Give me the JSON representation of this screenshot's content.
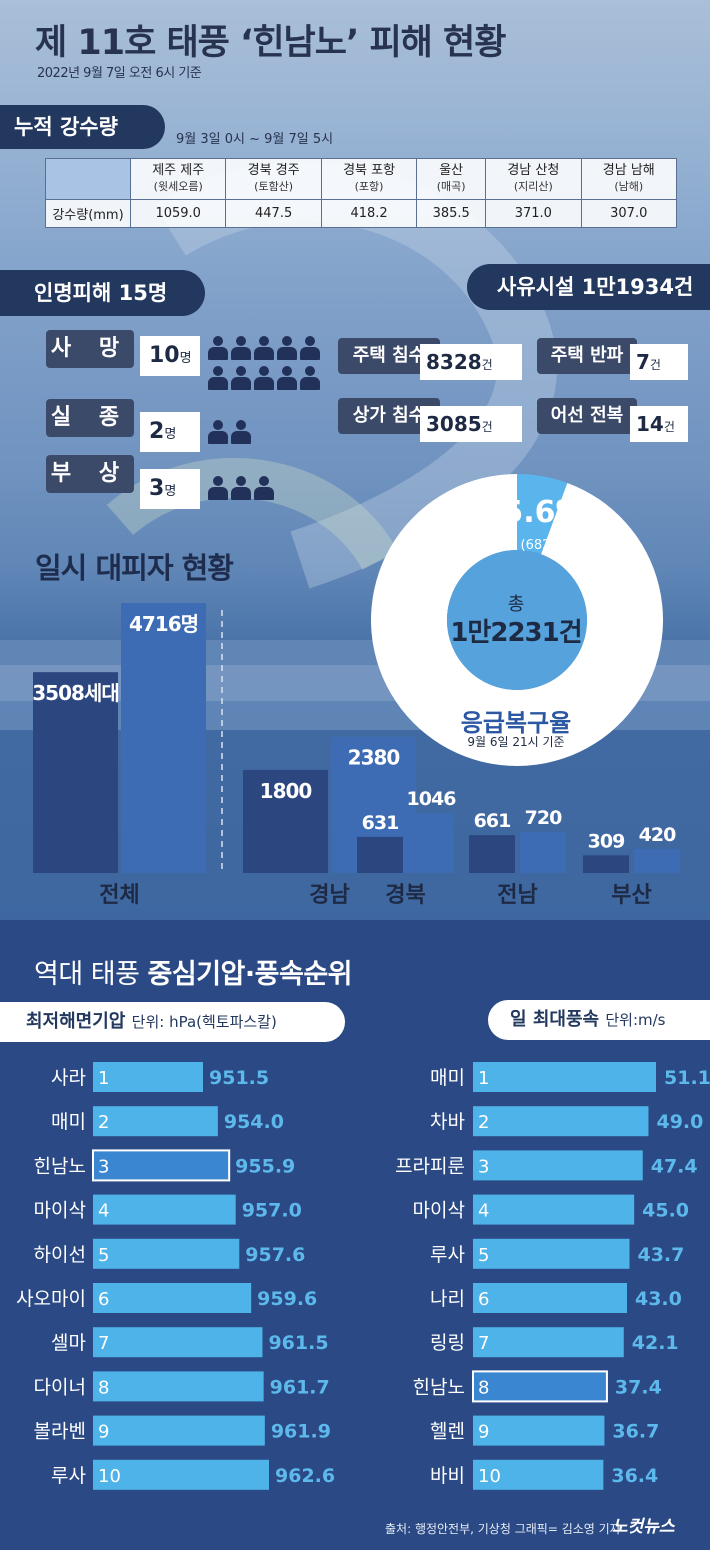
{
  "title": "제 11호 태풍 ‘힌남노’ 피해 현황",
  "subtitle": "2022년 9월 7일 오전 6시 기준",
  "rainfall": {
    "header": "누적 강수량",
    "period": "9월 3일 0시 ~ 9월 7일 5시",
    "row_label": "강수량(mm)",
    "columns": [
      {
        "name": "제주 제주",
        "sub": "(윗세오름)",
        "value": "1059.0"
      },
      {
        "name": "경북 경주",
        "sub": "(토함산)",
        "value": "447.5"
      },
      {
        "name": "경북 포항",
        "sub": "(포항)",
        "value": "418.2"
      },
      {
        "name": "울산",
        "sub": "(매곡)",
        "value": "385.5"
      },
      {
        "name": "경남 산청",
        "sub": "(지리산)",
        "value": "371.0"
      },
      {
        "name": "경남 남해",
        "sub": "(남해)",
        "value": "307.0"
      }
    ]
  },
  "casualties": {
    "header": "인명피해 15명",
    "items": [
      {
        "label": "사 망",
        "value": "10",
        "unit": "명",
        "count": 10
      },
      {
        "label": "실 종",
        "value": "2",
        "unit": "명",
        "count": 2
      },
      {
        "label": "부 상",
        "value": "3",
        "unit": "명",
        "count": 3
      }
    ]
  },
  "facilities": {
    "header": "사유시설 1만1934건",
    "items": [
      {
        "label": "주택 침수",
        "value": "8328",
        "unit": "건"
      },
      {
        "label": "주택 반파",
        "value": "7",
        "unit": "건"
      },
      {
        "label": "상가 침수",
        "value": "3085",
        "unit": "건"
      },
      {
        "label": "어선 전복",
        "value": "14",
        "unit": "건"
      }
    ]
  },
  "recovery": {
    "pct_label": "5.6%",
    "count_label": "(682건)",
    "total_prefix": "총",
    "total_value": "1만2231건",
    "title": "응급복구율",
    "note": "9월 6일 21시 기준"
  },
  "chart_data": [
    {
      "type": "bar",
      "title": "일시 대피자 현황",
      "categories": [
        "전체",
        "경남",
        "경북",
        "전남",
        "부산"
      ],
      "series": [
        {
          "name": "세대",
          "values": [
            3508,
            1800,
            631,
            661,
            309
          ]
        },
        {
          "name": "명",
          "values": [
            4716,
            2380,
            1046,
            720,
            420
          ]
        }
      ],
      "value_labels": [
        [
          "3508세대",
          "1800",
          "631",
          "661",
          "309"
        ],
        [
          "4716명",
          "2380",
          "1046",
          "720",
          "420"
        ]
      ],
      "colors": [
        "#2c477f",
        "#3d6cb4"
      ]
    },
    {
      "type": "pie",
      "title": "응급복구율",
      "values": [
        5.6,
        94.4
      ],
      "labels": [
        "5.6%",
        ""
      ],
      "colors": [
        "#5ab5ec",
        "#ffffff"
      ]
    },
    {
      "type": "bar",
      "title": "최저해면기압",
      "unit_label": "단위: hPa(헥토파스칼)",
      "categories": [
        "사라",
        "매미",
        "힌남노",
        "마이삭",
        "하이선",
        "사오마이",
        "셀마",
        "다이너",
        "볼라벤",
        "루사"
      ],
      "ranks": [
        "1",
        "2",
        "3",
        "4",
        "5",
        "6",
        "7",
        "8",
        "9",
        "10"
      ],
      "values": [
        951.5,
        954.0,
        955.9,
        957.0,
        957.6,
        959.6,
        961.5,
        961.7,
        961.9,
        962.6
      ],
      "value_labels": [
        "951.5",
        "954.0",
        "955.9",
        "957.0",
        "957.6",
        "959.6",
        "961.5",
        "961.7",
        "961.9",
        "962.6"
      ],
      "highlight": "힌남노",
      "colors": [
        "#4db3e8",
        "#3a86d1"
      ]
    },
    {
      "type": "bar",
      "title": "일 최대풍속",
      "unit_label": "단위:m/s",
      "categories": [
        "매미",
        "차바",
        "프라피룬",
        "마이삭",
        "루사",
        "나리",
        "링링",
        "힌남노",
        "헬렌",
        "바비"
      ],
      "ranks": [
        "1",
        "2",
        "3",
        "4",
        "5",
        "6",
        "7",
        "8",
        "9",
        "10"
      ],
      "values": [
        51.1,
        49.0,
        47.4,
        45.0,
        43.7,
        43.0,
        42.1,
        37.4,
        36.7,
        36.4
      ],
      "value_labels": [
        "51.1",
        "49.0",
        "47.4",
        "45.0",
        "43.7",
        "43.0",
        "42.1",
        "37.4",
        "36.7",
        "36.4"
      ],
      "highlight": "힌남노",
      "colors": [
        "#4db3e8",
        "#3a86d1"
      ]
    }
  ],
  "section2": {
    "title_light": "역대 태풍 ",
    "title_bold": "중심기압·풍속순위"
  },
  "source": "출처: 행정안전부, 기상청  그래픽= 김소영 기자",
  "logo": "노컷뉴스"
}
